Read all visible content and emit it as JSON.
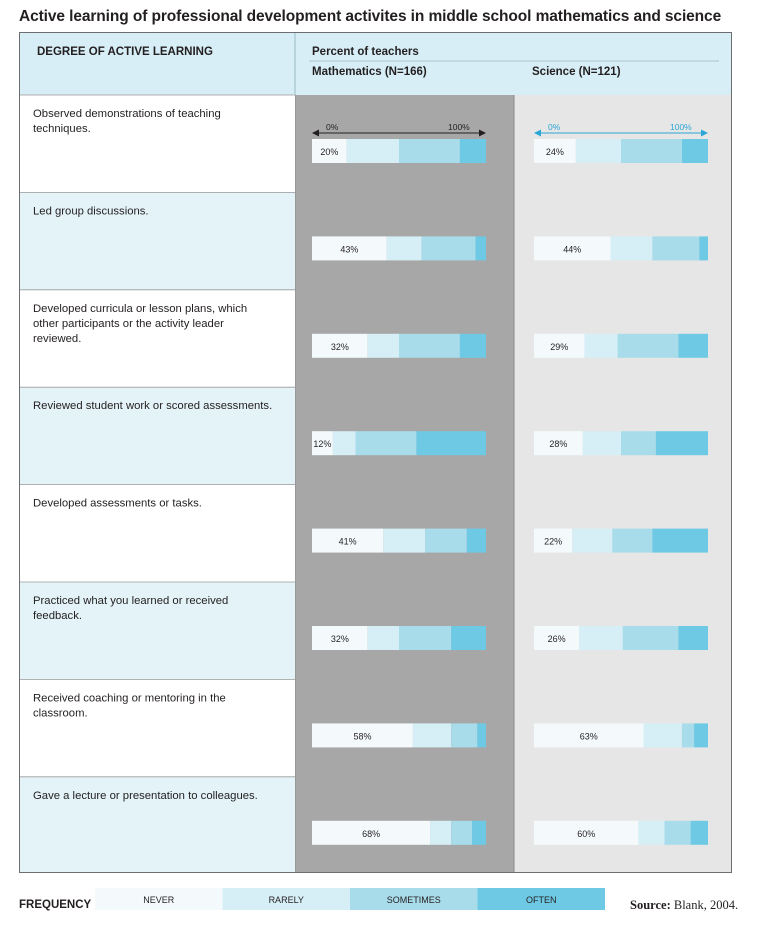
{
  "title": "Active learning of professional development activites in middle school mathematics and science",
  "header": {
    "degree_label": "DEGREE OF ACTIVE LEARNING",
    "percent_label": "Percent of teachers",
    "math_label": "Mathematics (N=166)",
    "science_label": "Science (N=121)"
  },
  "colors": {
    "never": "#f4fafc",
    "rarely": "#d6eef5",
    "sometimes": "#a9dcea",
    "often": "#6ecae4",
    "math_panel": "#a7a7a7",
    "science_panel": "#e6e6e6",
    "row_alt": "#e3f3f8",
    "header_bg": "#d7eef6",
    "science_arrow": "#2aa7d6"
  },
  "scale": {
    "min_label": "0%",
    "max_label": "100%"
  },
  "chart_data": {
    "type": "bar",
    "stacked": true,
    "orientation": "horizontal",
    "categories": [
      "Observed demonstrations of teaching techniques.",
      "Led group discussions.",
      "Developed curricula or lesson plans, which other participants or the activity leader reviewed.",
      "Reviewed student work or scored assessments.",
      "Developed assessments or tasks.",
      "Practiced what you learned or received feedback.",
      "Received coaching or mentoring in the classroom.",
      "Gave a lecture or presentation to colleagues."
    ],
    "frequency_levels": [
      "NEVER",
      "RARELY",
      "SOMETIMES",
      "OFTEN"
    ],
    "panels": [
      {
        "name": "Mathematics (N=166)",
        "never_labels": [
          "20%",
          "43%",
          "32%",
          "12%",
          "41%",
          "32%",
          "58%",
          "68%"
        ],
        "series": [
          {
            "name": "NEVER",
            "values": [
              20,
              43,
              32,
              12,
              41,
              32,
              58,
              68
            ]
          },
          {
            "name": "RARELY",
            "values": [
              30,
              20,
              18,
              13,
              24,
              18,
              22,
              12
            ]
          },
          {
            "name": "SOMETIMES",
            "values": [
              35,
              31,
              35,
              35,
              24,
              30,
              15,
              12
            ]
          },
          {
            "name": "OFTEN",
            "values": [
              15,
              6,
              15,
              40,
              11,
              20,
              5,
              8
            ]
          }
        ]
      },
      {
        "name": "Science (N=121)",
        "never_labels": [
          "24%",
          "44%",
          "29%",
          "28%",
          "22%",
          "26%",
          "63%",
          "60%"
        ],
        "series": [
          {
            "name": "NEVER",
            "values": [
              24,
              44,
              29,
              28,
              22,
              26,
              63,
              60
            ]
          },
          {
            "name": "RARELY",
            "values": [
              26,
              24,
              19,
              22,
              23,
              25,
              22,
              15
            ]
          },
          {
            "name": "SOMETIMES",
            "values": [
              35,
              27,
              35,
              20,
              23,
              32,
              7,
              15
            ]
          },
          {
            "name": "OFTEN",
            "values": [
              15,
              5,
              17,
              30,
              32,
              17,
              8,
              10
            ]
          }
        ]
      }
    ],
    "xlim": [
      0,
      100
    ]
  },
  "legend": {
    "title": "FREQUENCY",
    "items": [
      "NEVER",
      "RARELY",
      "SOMETIMES",
      "OFTEN"
    ]
  },
  "source": {
    "label": "Source:",
    "text": "Blank, 2004."
  }
}
